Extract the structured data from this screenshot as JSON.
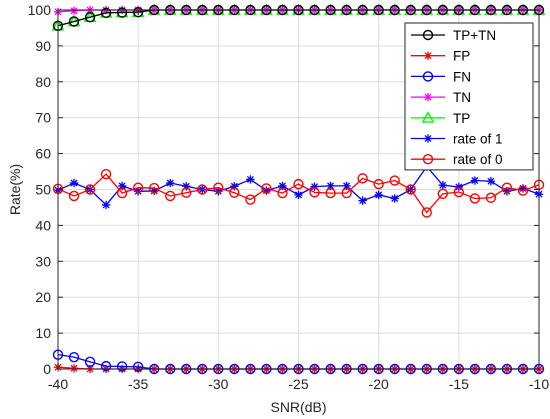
{
  "chart_data": {
    "type": "line",
    "title": "",
    "xlabel": "SNR(dB)",
    "ylabel": "Rate(%)",
    "xlim": [
      -40,
      -10
    ],
    "ylim": [
      0,
      100
    ],
    "xticks": [
      -40,
      -35,
      -30,
      -25,
      -20,
      -15,
      -10
    ],
    "yticks": [
      0,
      10,
      20,
      30,
      40,
      50,
      60,
      70,
      80,
      90,
      100
    ],
    "grid": true,
    "legend_position": "top-right",
    "x": [
      -40,
      -39,
      -38,
      -37,
      -36,
      -35,
      -34,
      -33,
      -32,
      -31,
      -30,
      -29,
      -28,
      -27,
      -26,
      -25,
      -24,
      -23,
      -22,
      -21,
      -20,
      -19,
      -18,
      -17,
      -16,
      -15,
      -14,
      -13,
      -12,
      -11,
      -10
    ],
    "series": [
      {
        "name": "TP+TN",
        "color": "#000000",
        "marker": "circle",
        "values": [
          95.6,
          96.8,
          98.0,
          99.2,
          99.3,
          99.4,
          100,
          100,
          100,
          100,
          100,
          100,
          100,
          100,
          100,
          100,
          100,
          100,
          100,
          100,
          100,
          100,
          100,
          100,
          100,
          100,
          100,
          100,
          100,
          100,
          100
        ]
      },
      {
        "name": "FP",
        "color": "#ff0000",
        "marker": "star",
        "values": [
          0.5,
          0.2,
          0,
          0,
          0,
          0,
          0,
          0,
          0,
          0,
          0,
          0,
          0,
          0,
          0,
          0,
          0,
          0,
          0,
          0,
          0,
          0,
          0,
          0,
          0,
          0,
          0,
          0,
          0,
          0,
          0
        ]
      },
      {
        "name": "FN",
        "color": "#0000ff",
        "marker": "circle",
        "values": [
          4.0,
          3.3,
          2.0,
          0.8,
          0.7,
          0.6,
          0,
          0,
          0,
          0,
          0,
          0,
          0,
          0,
          0,
          0,
          0,
          0,
          0,
          0,
          0,
          0,
          0,
          0,
          0,
          0,
          0,
          0,
          0,
          0,
          0
        ]
      },
      {
        "name": "TN",
        "color": "#ff00ff",
        "marker": "star",
        "values": [
          99.5,
          99.8,
          100,
          100,
          100,
          100,
          100,
          100,
          100,
          100,
          100,
          100,
          100,
          100,
          100,
          100,
          100,
          100,
          100,
          100,
          100,
          100,
          100,
          100,
          100,
          100,
          100,
          100,
          100,
          100,
          100
        ]
      },
      {
        "name": "TP",
        "color": "#00ff00",
        "marker": "triangle",
        "values": [
          95.6,
          96.8,
          98.0,
          99.2,
          99.3,
          99.4,
          100,
          100,
          100,
          100,
          100,
          100,
          100,
          100,
          100,
          100,
          100,
          100,
          100,
          100,
          100,
          100,
          100,
          100,
          100,
          100,
          100,
          100,
          100,
          100,
          100
        ]
      },
      {
        "name": "rate of 1",
        "color": "#0000ff",
        "marker": "star",
        "values": [
          49.8,
          51.8,
          50.0,
          45.7,
          51.0,
          49.5,
          49.6,
          51.8,
          50.9,
          50.0,
          49.5,
          50.9,
          52.8,
          49.7,
          51.0,
          48.5,
          50.8,
          51.0,
          51.0,
          46.9,
          48.5,
          47.5,
          50.0,
          56.4,
          51.2,
          50.7,
          52.5,
          52.3,
          49.5,
          50.3,
          48.7
        ]
      },
      {
        "name": "rate of 0",
        "color": "#ff0000",
        "marker": "circle",
        "values": [
          50.2,
          48.2,
          50.0,
          54.3,
          49.0,
          50.5,
          50.4,
          48.2,
          49.1,
          50.0,
          50.5,
          49.1,
          47.2,
          50.3,
          49.0,
          51.5,
          49.2,
          49.0,
          49.0,
          53.1,
          51.5,
          52.5,
          50.0,
          43.6,
          48.8,
          49.3,
          47.5,
          47.7,
          50.5,
          49.7,
          51.3
        ]
      }
    ]
  }
}
